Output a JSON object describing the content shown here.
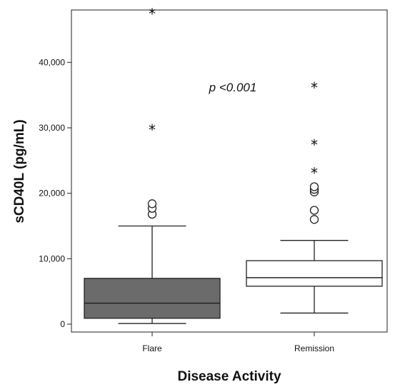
{
  "chart_data": {
    "type": "boxplot",
    "xlabel": "Disease Activity",
    "ylabel": "sCD40L (pg/mL)",
    "ylim": [
      -1200,
      48000
    ],
    "yticks": [
      0,
      10000,
      20000,
      30000,
      40000
    ],
    "ytick_labels": [
      "0",
      "10,000",
      "20,000",
      "30,000",
      "40,000"
    ],
    "annotation": "p <0.001",
    "grid": false,
    "groups": [
      {
        "category": "Flare",
        "fill": "#6b6b6b",
        "whisker_low": 100,
        "q1": 900,
        "median": 3200,
        "q3": 7000,
        "whisker_high": 15000,
        "outliers": [
          16800,
          17700,
          18400
        ],
        "extremes": [
          29800,
          47500
        ]
      },
      {
        "category": "Remission",
        "fill": "#ffffff",
        "whisker_low": 1700,
        "q1": 5800,
        "median": 7100,
        "q3": 9700,
        "whisker_high": 12800,
        "outliers": [
          16000,
          17400,
          20200,
          20600,
          21000
        ],
        "extremes": [
          23200,
          27500,
          36200
        ]
      }
    ]
  }
}
